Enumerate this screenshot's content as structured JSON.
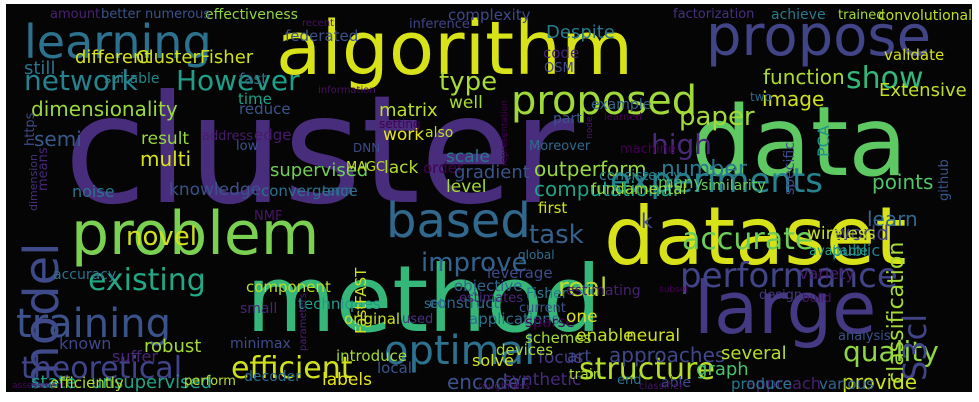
{
  "word_cloud": {
    "background": "#050505",
    "palette": "viridis",
    "words": [
      {
        "text": "cluster",
        "color": "#472d7b"
      },
      {
        "text": "algorithm",
        "color": "#d8e219"
      },
      {
        "text": "data",
        "color": "#5ec962"
      },
      {
        "text": "method",
        "color": "#35b779"
      },
      {
        "text": "dataset",
        "color": "#d8e219"
      },
      {
        "text": "large",
        "color": "#443983"
      },
      {
        "text": "problem",
        "color": "#7ad151"
      },
      {
        "text": "propose",
        "color": "#414487"
      },
      {
        "text": "learning",
        "color": "#2c728e"
      },
      {
        "text": "based",
        "color": "#31688e"
      },
      {
        "text": "training",
        "color": "#3b528b"
      },
      {
        "text": "optimal",
        "color": "#2c728e"
      },
      {
        "text": "proposed",
        "color": "#a0da39"
      },
      {
        "text": "experiments",
        "color": "#26828e"
      },
      {
        "text": "performance",
        "color": "#414487"
      },
      {
        "text": "model",
        "color": "#3e4a89"
      },
      {
        "text": "network",
        "color": "#26828e"
      },
      {
        "text": "However",
        "color": "#1f9e89"
      },
      {
        "text": "show",
        "color": "#35b779"
      },
      {
        "text": "existing",
        "color": "#22a884"
      },
      {
        "text": "theoretical",
        "color": "#404387"
      },
      {
        "text": "efficient",
        "color": "#d0e11c"
      },
      {
        "text": "structure",
        "color": "#b5de2b"
      },
      {
        "text": "quality",
        "color": "#8fd744"
      },
      {
        "text": "accurate",
        "color": "#6ccd5a"
      },
      {
        "text": "improve",
        "color": "#33638d"
      },
      {
        "text": "novel",
        "color": "#d0e11c"
      },
      {
        "text": "task",
        "color": "#35608d"
      },
      {
        "text": "high",
        "color": "#482878"
      },
      {
        "text": "real",
        "color": "#b8de29"
      },
      {
        "text": "paper",
        "color": "#a2da37"
      },
      {
        "text": "type",
        "color": "#a8db34"
      },
      {
        "text": "number",
        "color": "#2a788e"
      },
      {
        "text": "S3cl",
        "color": "#414487"
      },
      {
        "text": "dimensionality",
        "color": "#9bd93c"
      },
      {
        "text": "semi",
        "color": "#38598c"
      },
      {
        "text": "supervised",
        "color": "#6ece58"
      },
      {
        "text": "unsupervised",
        "color": "#20a386"
      },
      {
        "text": "state",
        "color": "#20a386"
      },
      {
        "text": "matrix",
        "color": "#bddf26"
      },
      {
        "text": "convergence",
        "color": "#2d708e"
      },
      {
        "text": "techniques",
        "color": "#1e9c89"
      },
      {
        "text": "component",
        "color": "#b8de29"
      },
      {
        "text": "outperform",
        "color": "#95d840"
      },
      {
        "text": "computational",
        "color": "#1fa287"
      },
      {
        "text": "Extensive",
        "color": "#c2df23"
      },
      {
        "text": "points",
        "color": "#52c569"
      },
      {
        "text": "learn",
        "color": "#31688e"
      },
      {
        "text": "world",
        "color": "#433d84"
      },
      {
        "text": "public",
        "color": "#277f8e"
      },
      {
        "text": "classification",
        "color": "#a5db36"
      },
      {
        "text": "approaches",
        "color": "#3f4788"
      },
      {
        "text": "applications",
        "color": "#2e6f8e"
      },
      {
        "text": "provide",
        "color": "#cae11f"
      },
      {
        "text": "encoder",
        "color": "#3b528b"
      },
      {
        "text": "synthetic",
        "color": "#472a7a"
      },
      {
        "text": "graph",
        "color": "#4ac16d"
      },
      {
        "text": "approach",
        "color": "#481f70"
      },
      {
        "text": "various",
        "color": "#31688e"
      },
      {
        "text": "several",
        "color": "#b5de2b"
      },
      {
        "text": "produce",
        "color": "#2a768e"
      },
      {
        "text": "image",
        "color": "#cde11d"
      },
      {
        "text": "function",
        "color": "#addc30"
      },
      {
        "text": "reduce",
        "color": "#39568c"
      },
      {
        "text": "fast",
        "color": "#2e6e8e"
      },
      {
        "text": "time",
        "color": "#1fa088"
      },
      {
        "text": "federated",
        "color": "#3b528b"
      },
      {
        "text": "complexity",
        "color": "#3f4889"
      },
      {
        "text": "inference",
        "color": "#414487"
      },
      {
        "text": "factorization",
        "color": "#46307e"
      },
      {
        "text": "achieve",
        "color": "#297b8e"
      },
      {
        "text": "trained",
        "color": "#a0da39"
      },
      {
        "text": "convolutional",
        "color": "#bddf26"
      },
      {
        "text": "validate",
        "color": "#d5e21a"
      },
      {
        "text": "effectiveness",
        "color": "#8fd744"
      },
      {
        "text": "numerous",
        "color": "#3b528b"
      },
      {
        "text": "amount",
        "color": "#482173"
      },
      {
        "text": "better",
        "color": "#3a538b"
      },
      {
        "text": "different",
        "color": "#d8e219"
      },
      {
        "text": "ClusterFisher",
        "color": "#d0e11c"
      },
      {
        "text": "still",
        "color": "#2c728e"
      },
      {
        "text": "Despite",
        "color": "#297b8e"
      },
      {
        "text": "code",
        "color": "#482475"
      },
      {
        "text": "OSM",
        "color": "#3e4a89"
      },
      {
        "text": "github",
        "color": "#39558c"
      },
      {
        "text": "https",
        "color": "#3e4a89"
      },
      {
        "text": "means",
        "color": "#482677"
      },
      {
        "text": "multi",
        "color": "#d8e219"
      },
      {
        "text": "result",
        "color": "#98d83e"
      },
      {
        "text": "edge",
        "color": "#481a6c"
      },
      {
        "text": "work",
        "color": "#e7e419"
      },
      {
        "text": "scale",
        "color": "#2a788e"
      },
      {
        "text": "level",
        "color": "#a5db36"
      },
      {
        "text": "lack",
        "color": "#b2dd2d"
      },
      {
        "text": "order",
        "color": "#440154"
      },
      {
        "text": "gradient",
        "color": "#3b528b"
      },
      {
        "text": "term",
        "color": "#2e6f8e"
      },
      {
        "text": "knowledge",
        "color": "#3b528b"
      },
      {
        "text": "noise",
        "color": "#2c728e"
      },
      {
        "text": "NMF",
        "color": "#481467"
      },
      {
        "text": "objective",
        "color": "#32648e"
      },
      {
        "text": "construct",
        "color": "#30698e"
      },
      {
        "text": "leverage",
        "color": "#3e4a89"
      },
      {
        "text": "estimates",
        "color": "#482878"
      },
      {
        "text": "original",
        "color": "#c8e020"
      },
      {
        "text": "used",
        "color": "#46327e"
      },
      {
        "text": "set",
        "color": "#2c728e"
      },
      {
        "text": "current",
        "color": "#3b528b"
      },
      {
        "text": "known",
        "color": "#404688"
      },
      {
        "text": "suffer",
        "color": "#482576"
      },
      {
        "text": "robust",
        "color": "#a5db36"
      },
      {
        "text": "minimax",
        "color": "#3e4a89"
      },
      {
        "text": "efficiently",
        "color": "#b5de2b"
      },
      {
        "text": "perform",
        "color": "#b8de29"
      },
      {
        "text": "decoder",
        "color": "#2e6e8e"
      },
      {
        "text": "labels",
        "color": "#e7e419"
      },
      {
        "text": "introduce",
        "color": "#a2da37"
      },
      {
        "text": "local",
        "color": "#3a538b"
      },
      {
        "text": "sparse",
        "color": "#440154"
      },
      {
        "text": "Fisher",
        "color": "#297b8e"
      },
      {
        "text": "schemes",
        "color": "#a2da37"
      },
      {
        "text": "enable",
        "color": "#c2df23"
      },
      {
        "text": "neural",
        "color": "#d0e11c"
      },
      {
        "text": "one",
        "color": "#d5e21a"
      },
      {
        "text": "focus",
        "color": "#443a83"
      },
      {
        "text": "art",
        "color": "#3e4a89"
      },
      {
        "text": "train",
        "color": "#a8db34"
      },
      {
        "text": "end",
        "color": "#2c728e"
      },
      {
        "text": "able",
        "color": "#3e4a89"
      },
      {
        "text": "classifier",
        "color": "#471164"
      },
      {
        "text": "analysis",
        "color": "#3b528b"
      },
      {
        "text": "build",
        "color": "#471365"
      },
      {
        "text": "design",
        "color": "#453781"
      },
      {
        "text": "available",
        "color": "#20a386"
      },
      {
        "text": "wireless",
        "color": "#c5e021"
      },
      {
        "text": "variety",
        "color": "#481c6e"
      },
      {
        "text": "devices",
        "color": "#a8db34"
      },
      {
        "text": "solve",
        "color": "#d2e21b"
      },
      {
        "text": "estimating",
        "color": "#482071"
      },
      {
        "text": "Moreover",
        "color": "#30698e"
      },
      {
        "text": "machine",
        "color": "#440154"
      },
      {
        "text": "many",
        "color": "#5ac864"
      },
      {
        "text": "similarity",
        "color": "#6ece58"
      },
      {
        "text": "specific",
        "color": "#3e4a89"
      },
      {
        "text": "PCA",
        "color": "#20928c"
      },
      {
        "text": "first",
        "color": "#cde11d"
      },
      {
        "text": "fundamental",
        "color": "#a2da37"
      },
      {
        "text": "consistency",
        "color": "#27808e"
      },
      {
        "text": "DNN",
        "color": "#3e4a89"
      },
      {
        "text": "MAGC",
        "color": "#c2df23"
      },
      {
        "text": "global",
        "color": "#2e6e8e"
      },
      {
        "text": "low",
        "color": "#3b528b"
      },
      {
        "text": "accuracy",
        "color": "#2c728e"
      },
      {
        "text": "small",
        "color": "#482475"
      },
      {
        "text": "FastFAST",
        "color": "#cde11d"
      },
      {
        "text": "address",
        "color": "#481b6d"
      },
      {
        "text": "suitable",
        "color": "#24868e"
      },
      {
        "text": "setting",
        "color": "#440154"
      },
      {
        "text": "well",
        "color": "#a8db34"
      },
      {
        "text": "part",
        "color": "#3b528b"
      },
      {
        "text": "example",
        "color": "#32658e"
      },
      {
        "text": "two",
        "color": "#31688e"
      },
      {
        "text": "k",
        "color": "#3e4a89"
      },
      {
        "text": "information",
        "color": "#471063"
      },
      {
        "text": "representation",
        "color": "#440154"
      },
      {
        "text": "node",
        "color": "#481668"
      },
      {
        "text": "dimension",
        "color": "#46307e"
      },
      {
        "text": "also",
        "color": "#bddf26"
      },
      {
        "text": "roughness",
        "color": "#481668"
      },
      {
        "text": "assessment",
        "color": "#46085c"
      },
      {
        "text": "recent",
        "color": "#471063"
      },
      {
        "text": "parameters",
        "color": "#482173"
      },
      {
        "text": "learned",
        "color": "#440154"
      },
      {
        "text": "subset",
        "color": "#440154"
      }
    ]
  }
}
